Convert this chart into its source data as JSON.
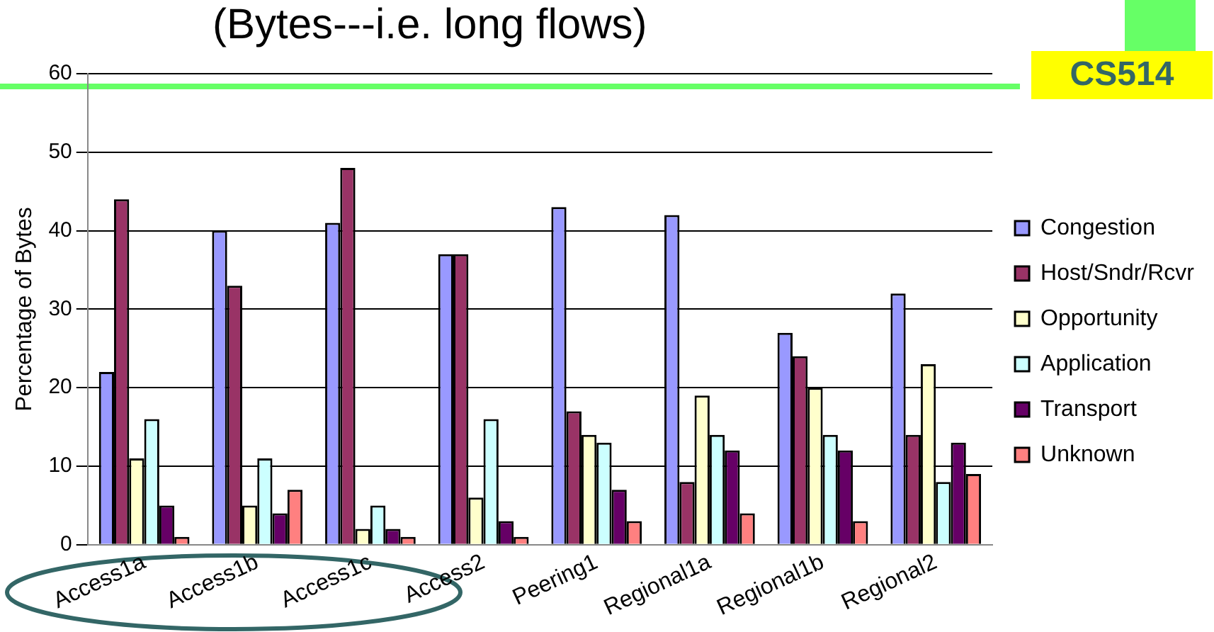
{
  "chart_data": {
    "type": "bar",
    "title": "(Bytes---i.e. long flows)",
    "ylabel": "Percentage of Bytes",
    "annotations": [
      "CS514"
    ],
    "categories": [
      "Access1a",
      "Access1b",
      "Access1c",
      "Access2",
      "Peering1",
      "Regional1a",
      "Regional1b",
      "Regional2"
    ],
    "series": [
      {
        "name": "Congestion",
        "color": "#9999ff",
        "values": [
          22,
          40,
          41,
          37,
          43,
          42,
          27,
          32
        ]
      },
      {
        "name": "Host/Sndr/Rcvr",
        "color": "#993366",
        "values": [
          44,
          33,
          48,
          37,
          17,
          8,
          24,
          14
        ]
      },
      {
        "name": "Opportunity",
        "color": "#ffffcc",
        "values": [
          11,
          5,
          2,
          6,
          14,
          19,
          20,
          23
        ]
      },
      {
        "name": "Application",
        "color": "#ccffff",
        "values": [
          16,
          11,
          5,
          16,
          13,
          14,
          14,
          8
        ]
      },
      {
        "name": "Transport",
        "color": "#660066",
        "values": [
          5,
          4,
          2,
          3,
          7,
          12,
          12,
          13
        ]
      },
      {
        "name": "Unknown",
        "color": "#ff8080",
        "values": [
          1,
          7,
          1,
          1,
          3,
          4,
          3,
          9
        ]
      }
    ],
    "ylim": [
      0,
      60
    ],
    "yticks": [
      0,
      10,
      20,
      30,
      40,
      50,
      60
    ],
    "grid": "y",
    "legend": "right"
  }
}
